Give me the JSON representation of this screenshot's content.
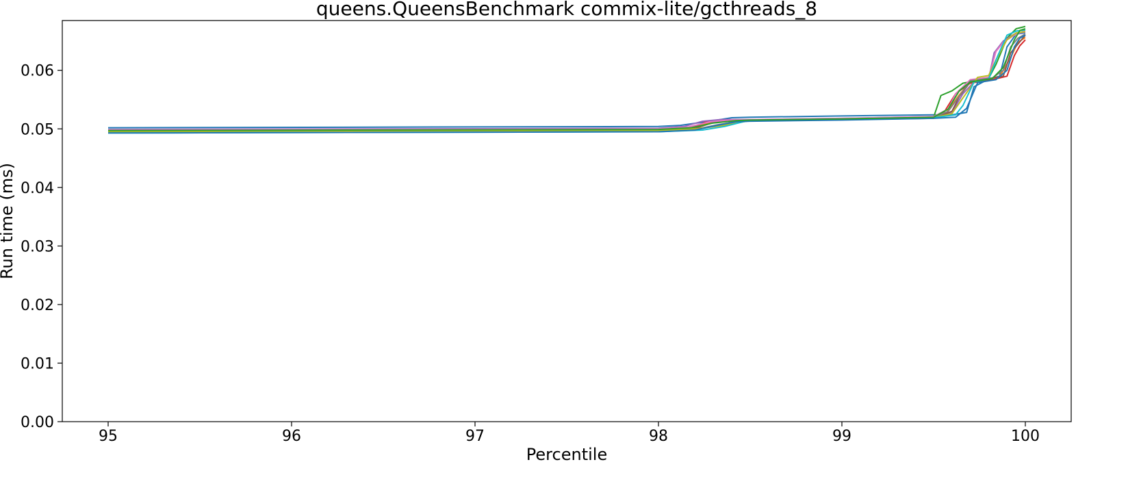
{
  "chart_data": {
    "type": "line",
    "title": "queens.QueensBenchmark commix-lite/gcthreads_8",
    "xlabel": "Percentile",
    "ylabel": "Run time (ms)",
    "xlim": [
      94.75,
      100.25
    ],
    "ylim": [
      0.0,
      0.0685
    ],
    "xticks": [
      95,
      96,
      97,
      98,
      99,
      100
    ],
    "xtick_labels": [
      "95",
      "96",
      "97",
      "98",
      "99",
      "100"
    ],
    "yticks": [
      0.0,
      0.01,
      0.02,
      0.03,
      0.04,
      0.05,
      0.06
    ],
    "ytick_labels": [
      "0.00",
      "0.01",
      "0.02",
      "0.03",
      "0.04",
      "0.05",
      "0.06"
    ],
    "grid": false,
    "legend": "none",
    "series": [
      {
        "color": "#1f77b4",
        "x": [
          95,
          98.0,
          98.12,
          98.3,
          98.4,
          98.5,
          99.0,
          99.5,
          99.6,
          99.68,
          99.72,
          99.8,
          99.86,
          99.9,
          99.95,
          100
        ],
        "y": [
          0.0502,
          0.0504,
          0.0506,
          0.0514,
          0.0519,
          0.052,
          0.0522,
          0.0524,
          0.0524,
          0.0528,
          0.0572,
          0.0585,
          0.059,
          0.064,
          0.0662,
          0.0664
        ]
      },
      {
        "color": "#ff7f0e",
        "x": [
          95,
          98.0,
          98.16,
          98.3,
          98.42,
          98.5,
          99.0,
          99.5,
          99.57,
          99.64,
          99.7,
          99.8,
          99.86,
          99.92,
          99.96,
          100
        ],
        "y": [
          0.0498,
          0.05,
          0.0503,
          0.0511,
          0.0514,
          0.0515,
          0.0517,
          0.0519,
          0.0528,
          0.0558,
          0.058,
          0.0586,
          0.0589,
          0.0622,
          0.0648,
          0.0656
        ]
      },
      {
        "color": "#2ca02c",
        "x": [
          95,
          98.0,
          98.2,
          98.34,
          98.44,
          98.5,
          99.0,
          99.5,
          99.54,
          99.6,
          99.66,
          99.8,
          99.84,
          99.9,
          99.95,
          100
        ],
        "y": [
          0.0495,
          0.0497,
          0.05,
          0.0506,
          0.0513,
          0.0515,
          0.0517,
          0.052,
          0.0557,
          0.0565,
          0.0578,
          0.0586,
          0.061,
          0.0655,
          0.0671,
          0.0675
        ]
      },
      {
        "color": "#d62728",
        "x": [
          95,
          98.0,
          98.18,
          98.26,
          98.4,
          98.5,
          99.0,
          99.5,
          99.56,
          99.62,
          99.7,
          99.82,
          99.9,
          99.94,
          99.97,
          100
        ],
        "y": [
          0.0497,
          0.0499,
          0.0502,
          0.0512,
          0.0513,
          0.0514,
          0.0517,
          0.052,
          0.053,
          0.056,
          0.0578,
          0.0584,
          0.059,
          0.0625,
          0.0642,
          0.0652
        ]
      },
      {
        "color": "#9467bd",
        "x": [
          95,
          98.0,
          98.14,
          98.24,
          98.34,
          98.5,
          99.0,
          99.5,
          99.6,
          99.66,
          99.72,
          99.8,
          99.83,
          99.88,
          99.94,
          100
        ],
        "y": [
          0.0499,
          0.0501,
          0.0504,
          0.0513,
          0.0516,
          0.0516,
          0.0518,
          0.0521,
          0.0528,
          0.056,
          0.058,
          0.0585,
          0.063,
          0.065,
          0.0662,
          0.0665
        ]
      },
      {
        "color": "#8c564b",
        "x": [
          95,
          98.0,
          98.2,
          98.3,
          98.4,
          98.5,
          99.0,
          99.5,
          99.6,
          99.64,
          99.7,
          99.8,
          99.88,
          99.92,
          99.96,
          100
        ],
        "y": [
          0.0496,
          0.0498,
          0.0501,
          0.0511,
          0.0513,
          0.0514,
          0.0516,
          0.0518,
          0.053,
          0.0555,
          0.058,
          0.0586,
          0.059,
          0.063,
          0.0645,
          0.066
        ]
      },
      {
        "color": "#e377c2",
        "x": [
          95,
          98.0,
          98.16,
          98.28,
          98.38,
          98.5,
          99.0,
          99.5,
          99.58,
          99.62,
          99.7,
          99.8,
          99.84,
          99.88,
          99.94,
          100
        ],
        "y": [
          0.0498,
          0.05,
          0.0503,
          0.0512,
          0.0515,
          0.0516,
          0.0518,
          0.0521,
          0.0534,
          0.056,
          0.0584,
          0.0588,
          0.0632,
          0.0648,
          0.066,
          0.0668
        ]
      },
      {
        "color": "#7f7f7f",
        "x": [
          95,
          98.0,
          98.2,
          98.32,
          98.44,
          98.5,
          99.0,
          99.5,
          99.58,
          99.64,
          99.7,
          99.82,
          99.88,
          99.92,
          99.96,
          100
        ],
        "y": [
          0.0494,
          0.0496,
          0.0499,
          0.0507,
          0.0513,
          0.0514,
          0.0516,
          0.0519,
          0.053,
          0.0556,
          0.0582,
          0.0587,
          0.06,
          0.064,
          0.0655,
          0.0662
        ]
      },
      {
        "color": "#bcbd22",
        "x": [
          95,
          98.0,
          98.2,
          98.34,
          98.46,
          98.5,
          99.0,
          99.5,
          99.6,
          99.66,
          99.74,
          99.8,
          99.84,
          99.9,
          99.95,
          100
        ],
        "y": [
          0.0495,
          0.0497,
          0.05,
          0.0505,
          0.0512,
          0.0514,
          0.0516,
          0.0519,
          0.0526,
          0.0553,
          0.0588,
          0.0591,
          0.0618,
          0.0652,
          0.0664,
          0.0666
        ]
      },
      {
        "color": "#17becf",
        "x": [
          95,
          98.0,
          98.24,
          98.36,
          98.46,
          98.5,
          99.0,
          99.5,
          99.62,
          99.66,
          99.72,
          99.8,
          99.85,
          99.9,
          99.95,
          100
        ],
        "y": [
          0.0493,
          0.0495,
          0.0498,
          0.0504,
          0.0512,
          0.0514,
          0.0516,
          0.0519,
          0.0524,
          0.054,
          0.058,
          0.0585,
          0.0625,
          0.066,
          0.0667,
          0.0669
        ]
      },
      {
        "color": "#1f77b4",
        "x": [
          95,
          98.0,
          98.2,
          98.32,
          98.42,
          98.5,
          99.0,
          99.5,
          99.62,
          99.68,
          99.74,
          99.84,
          99.9,
          99.94,
          99.97,
          100
        ],
        "y": [
          0.0493,
          0.0495,
          0.0498,
          0.0506,
          0.0512,
          0.0513,
          0.0515,
          0.0518,
          0.052,
          0.0535,
          0.0579,
          0.0584,
          0.06,
          0.064,
          0.0655,
          0.066
        ]
      },
      {
        "color": "#2ca02c",
        "x": [
          95,
          98.0,
          98.18,
          98.3,
          98.42,
          98.5,
          99.0,
          99.5,
          99.58,
          99.64,
          99.7,
          99.82,
          99.88,
          99.94,
          99.97,
          100
        ],
        "y": [
          0.0497,
          0.0499,
          0.0502,
          0.051,
          0.0514,
          0.0515,
          0.0517,
          0.052,
          0.0534,
          0.0565,
          0.058,
          0.0586,
          0.0605,
          0.0652,
          0.0668,
          0.0671
        ]
      }
    ]
  }
}
